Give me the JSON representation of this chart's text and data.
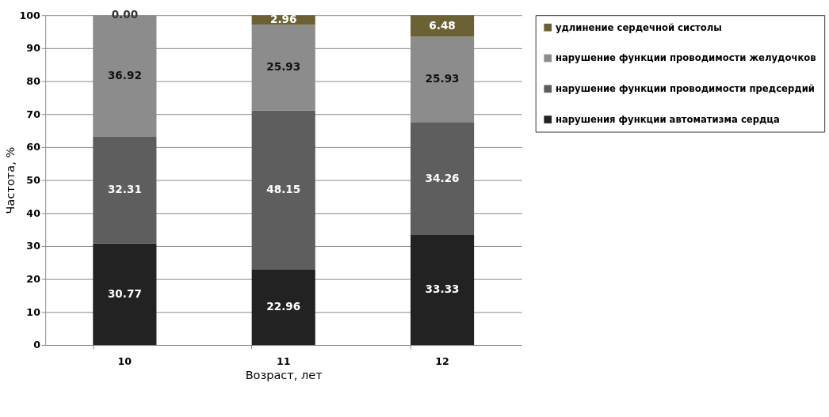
{
  "chart_data": {
    "type": "bar",
    "stacked": true,
    "xlabel": "Возраст, лет",
    "ylabel": "Частота, %",
    "categories": [
      "10",
      "11",
      "12"
    ],
    "series": [
      {
        "name": "нарушения функции автоматизма сердца",
        "color": "#222222",
        "values": [
          30.77,
          22.96,
          33.33
        ],
        "value_labels": [
          "30.77",
          "22.96",
          "33.33"
        ]
      },
      {
        "name": "нарушение функции проводимости предсердий",
        "color": "#5e5e5e",
        "values": [
          32.31,
          48.15,
          34.26
        ],
        "value_labels": [
          "32.31",
          "48.15",
          "34.26"
        ]
      },
      {
        "name": "нарушение функции проводимости желудочков",
        "color": "#8c8c8c",
        "values": [
          36.92,
          25.93,
          25.93
        ],
        "value_labels": [
          "36.92",
          "25.93",
          "25.93"
        ]
      },
      {
        "name": "удлинение сердечной систолы",
        "color": "#6b6135",
        "values": [
          0.0,
          2.96,
          6.48
        ],
        "value_labels": [
          "0.00",
          "2.96",
          "6.48"
        ]
      }
    ],
    "ylim": [
      0,
      100
    ],
    "yticks": [
      0,
      10,
      20,
      30,
      40,
      50,
      60,
      70,
      80,
      90,
      100
    ],
    "grid": "y",
    "legend": "right"
  }
}
